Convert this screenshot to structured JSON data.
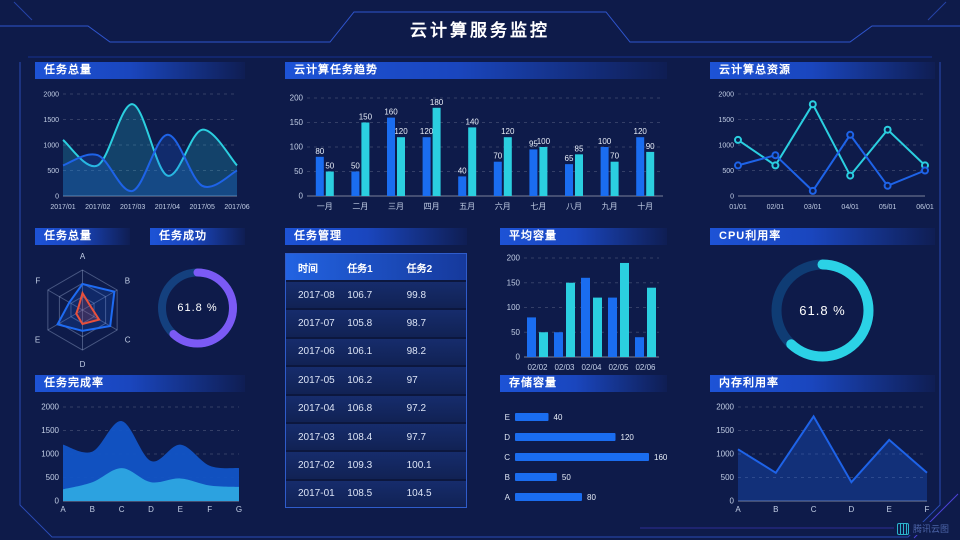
{
  "header": {
    "title": "云计算服务监控"
  },
  "watermark": {
    "label": "腾讯云图"
  },
  "panels": {
    "task_total_line": {
      "title": "任务总量"
    },
    "task_trend_bar": {
      "title": "云计算任务趋势"
    },
    "cloud_resource_line": {
      "title": "云计算总资源"
    },
    "task_total_radar": {
      "title": "任务总量"
    },
    "task_success_gauge": {
      "title": "任务成功",
      "value": "61.8 %"
    },
    "task_table": {
      "title": "任务管理"
    },
    "avg_capacity_bar": {
      "title": "平均容量"
    },
    "cpu_gauge": {
      "title": "CPU利用率",
      "value": "61.8 %"
    },
    "task_completion_area": {
      "title": "任务完成率"
    },
    "storage_hbar": {
      "title": "存储容量"
    },
    "memory_line": {
      "title": "内存利用率"
    }
  },
  "table": {
    "columns": [
      "时间",
      "任务1",
      "任务2"
    ],
    "rows": [
      [
        "2017-08",
        "106.7",
        "99.8"
      ],
      [
        "2017-07",
        "105.8",
        "98.7"
      ],
      [
        "2017-06",
        "106.1",
        "98.2"
      ],
      [
        "2017-05",
        "106.2",
        "97"
      ],
      [
        "2017-04",
        "106.8",
        "97.2"
      ],
      [
        "2017-03",
        "108.4",
        "97.7"
      ],
      [
        "2017-02",
        "109.3",
        "100.1"
      ],
      [
        "2017-01",
        "108.5",
        "104.5"
      ]
    ]
  },
  "chart_data": [
    {
      "id": "task_total_line",
      "type": "line",
      "title": "任务总量",
      "x": [
        "2017/01",
        "2017/02",
        "2017/03",
        "2017/04",
        "2017/05",
        "2017/06"
      ],
      "series": [
        {
          "name": "series-cyan",
          "color": "#2BCFE0",
          "values": [
            1100,
            600,
            1800,
            400,
            1300,
            600
          ]
        },
        {
          "name": "series-blue",
          "color": "#1E63E8",
          "values": [
            600,
            800,
            100,
            1200,
            200,
            500
          ]
        }
      ],
      "ylim": [
        0,
        2000
      ],
      "yticks": [
        0,
        500,
        1000,
        1500,
        2000
      ],
      "smooth": true,
      "area": true,
      "markers": false,
      "grid": "dashed",
      "xlabel": "",
      "ylabel": ""
    },
    {
      "id": "task_trend_bar",
      "type": "bar",
      "title": "云计算任务趋势",
      "categories": [
        "一月",
        "二月",
        "三月",
        "四月",
        "五月",
        "六月",
        "七月",
        "八月",
        "九月",
        "十月"
      ],
      "series": [
        {
          "name": "任务1",
          "color": "#1A6DF0",
          "values": [
            80,
            50,
            160,
            120,
            40,
            70,
            95,
            65,
            100,
            120
          ]
        },
        {
          "name": "任务2",
          "color": "#2BCFE0",
          "values": [
            50,
            150,
            120,
            180,
            140,
            120,
            100,
            85,
            70,
            90
          ]
        }
      ],
      "ylim": [
        0,
        200
      ],
      "yticks": [
        0,
        50,
        100,
        150,
        200
      ],
      "labels": true,
      "grid": "dashed",
      "xlabel": "",
      "ylabel": ""
    },
    {
      "id": "cloud_resource_line",
      "type": "line",
      "title": "云计算总资源",
      "x": [
        "01/01",
        "02/01",
        "03/01",
        "04/01",
        "05/01",
        "06/01"
      ],
      "series": [
        {
          "name": "series-cyan",
          "color": "#2BCFE0",
          "values": [
            1100,
            600,
            1800,
            400,
            1300,
            600
          ]
        },
        {
          "name": "series-blue",
          "color": "#1E63E8",
          "values": [
            600,
            800,
            100,
            1200,
            200,
            500
          ]
        }
      ],
      "ylim": [
        0,
        2000
      ],
      "yticks": [
        0,
        500,
        1000,
        1500,
        2000
      ],
      "smooth": false,
      "area": false,
      "markers": true,
      "grid": "dashed",
      "xlabel": "",
      "ylabel": ""
    },
    {
      "id": "task_total_radar",
      "type": "radar",
      "title": "任务总量",
      "axes": [
        "A",
        "B",
        "C",
        "D",
        "E",
        "F"
      ],
      "max": 100,
      "series": [
        {
          "name": "radar-blue",
          "color": "#1E6BF2",
          "values": [
            65,
            92,
            80,
            52,
            72,
            38
          ]
        },
        {
          "name": "radar-red",
          "color": "#E8503C",
          "values": [
            42,
            22,
            48,
            35,
            18,
            12
          ]
        }
      ]
    },
    {
      "id": "task_success_gauge",
      "type": "donut",
      "title": "任务成功",
      "value": 61.8,
      "label": "61.8 %",
      "color": "#7B5AF5",
      "track": "#14407E"
    },
    {
      "id": "avg_capacity_bar",
      "type": "bar",
      "title": "平均容量",
      "categories": [
        "02/02",
        "02/03",
        "02/04",
        "02/05",
        "02/06"
      ],
      "series": [
        {
          "name": "series-blue",
          "color": "#1A6DF0",
          "values": [
            80,
            50,
            160,
            120,
            40
          ]
        },
        {
          "name": "series-cyan",
          "color": "#2BCFE0",
          "values": [
            50,
            150,
            120,
            190,
            140
          ]
        }
      ],
      "ylim": [
        0,
        200
      ],
      "yticks": [
        0,
        50,
        100,
        150,
        200
      ],
      "labels": false,
      "grid": "dashed",
      "xlabel": "",
      "ylabel": ""
    },
    {
      "id": "cpu_gauge",
      "type": "donut",
      "title": "CPU利用率",
      "value": 61.8,
      "label": "61.8 %",
      "color": "#2BD2E6",
      "track": "#0F3C74"
    },
    {
      "id": "task_completion_area",
      "type": "area",
      "title": "任务完成率",
      "x": [
        "A",
        "B",
        "C",
        "D",
        "E",
        "F",
        "G"
      ],
      "series": [
        {
          "name": "area-blue",
          "color": "#1254C6",
          "values": [
            1200,
            1050,
            1700,
            850,
            1200,
            750,
            700
          ]
        },
        {
          "name": "area-light",
          "color": "#2EA6E2",
          "values": [
            250,
            400,
            700,
            400,
            480,
            330,
            300
          ]
        }
      ],
      "ylim": [
        0,
        2000
      ],
      "yticks": [
        0,
        500,
        1000,
        1500,
        2000
      ],
      "smooth": true,
      "grid": "dashed",
      "xlabel": "",
      "ylabel": ""
    },
    {
      "id": "storage_hbar",
      "type": "hbar",
      "title": "存储容量",
      "categories": [
        "E",
        "D",
        "C",
        "B",
        "A"
      ],
      "values": [
        40,
        120,
        160,
        50,
        80
      ],
      "color": "#1A6DF0",
      "xmax": 160,
      "labels": true
    },
    {
      "id": "memory_line",
      "type": "line",
      "title": "内存利用率",
      "x": [
        "A",
        "B",
        "C",
        "D",
        "E",
        "F"
      ],
      "series": [
        {
          "name": "series-blue",
          "color": "#1E63E8",
          "values": [
            1100,
            600,
            1800,
            400,
            1300,
            600
          ]
        }
      ],
      "ylim": [
        0,
        2000
      ],
      "yticks": [
        0,
        500,
        1000,
        1500,
        2000
      ],
      "smooth": false,
      "area": true,
      "markers": false,
      "grid": "dashed",
      "xlabel": "",
      "ylabel": ""
    }
  ]
}
